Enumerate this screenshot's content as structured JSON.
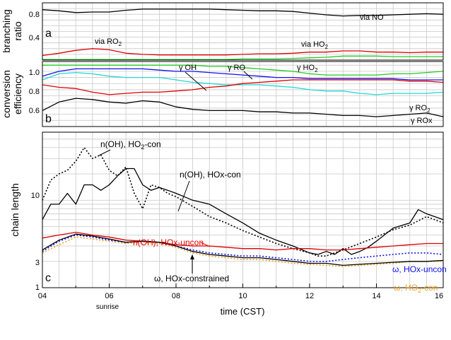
{
  "x_axis": {
    "label": "time (CST)",
    "ticks": [
      "04",
      "06",
      "08",
      "10",
      "12",
      "14",
      "16"
    ],
    "annotation": "sunrise",
    "range": [
      4,
      16
    ]
  },
  "panels": {
    "a": {
      "letter": "a",
      "ylabel_line1": "branching",
      "ylabel_line2": "ratio",
      "ticks": [
        "0.8",
        "0.4"
      ],
      "labels": {
        "via_no": "via NO",
        "via_ro2_main": "via RO",
        "via_ro2_sub": "2",
        "via_ho2_main": "via HO",
        "via_ho2_sub": "2"
      }
    },
    "b": {
      "letter": "b",
      "ylabel_line1": "conversion",
      "ylabel_line2": "efficiency",
      "ticks": [
        "1.0",
        "0.8",
        "0.6"
      ],
      "labels": {
        "g_oh": "γ OH",
        "g_ro": "γ RO",
        "g_ho2_main": "γ HO",
        "g_ho2_sub": "2",
        "g_ro2_main": "γ RO",
        "g_ro2_sub": "2",
        "g_rox": "γ ROx"
      }
    },
    "c": {
      "letter": "c",
      "ylabel": "chain length",
      "ticks": [
        "10",
        "3",
        "1"
      ],
      "labels": {
        "n_oh_ho2_main": "n(OH), HO",
        "n_oh_ho2_sub": "2",
        "n_oh_ho2_tail": "-con",
        "n_oh_hox_con": "n(OH), HOx-con",
        "n_oh_hox_uncon": "n(OH), HOx-uncon",
        "omega_hox_uncon": "ω, HOx-uncon",
        "omega_ho2_main": "ω, HO",
        "omega_ho2_sub": "2",
        "omega_ho2_tail": "-con",
        "omega_hox_constrained": "ω, HOx-constrained"
      }
    }
  },
  "colors": {
    "black": "#000000",
    "red": "#e00000",
    "green": "#22cc22",
    "blue": "#1010ee",
    "cyan": "#22d8d8",
    "orange": "#f0a020"
  },
  "chart_data": [
    {
      "type": "line",
      "panel": "a",
      "ylim": [
        0,
        1.0
      ],
      "series": [
        {
          "name": "via NO",
          "color": "#000000",
          "style": "solid",
          "x": [
            4.0,
            4.5,
            5.0,
            5.5,
            6.0,
            6.5,
            7.0,
            7.5,
            8.0,
            8.5,
            9.0,
            9.5,
            10.0,
            10.5,
            11.0,
            11.5,
            12.0,
            12.5,
            13.0,
            13.5,
            14.0,
            14.5,
            15.0,
            15.5,
            16.0
          ],
          "y": [
            0.88,
            0.86,
            0.83,
            0.84,
            0.84,
            0.87,
            0.89,
            0.89,
            0.89,
            0.89,
            0.89,
            0.88,
            0.87,
            0.86,
            0.86,
            0.85,
            0.82,
            0.79,
            0.77,
            0.78,
            0.78,
            0.79,
            0.8,
            0.81,
            0.8
          ]
        },
        {
          "name": "via RO2",
          "color": "#e00000",
          "style": "solid",
          "x": [
            4.0,
            4.5,
            5.0,
            5.5,
            6.0,
            6.5,
            7.0,
            7.5,
            8.0,
            8.5,
            9.0,
            9.5,
            10.0,
            10.5,
            11.0,
            11.5,
            12.0,
            12.5,
            13.0,
            13.5,
            14.0,
            14.5,
            15.0,
            15.5,
            16.0
          ],
          "y": [
            0.08,
            0.12,
            0.17,
            0.2,
            0.18,
            0.12,
            0.1,
            0.09,
            0.09,
            0.09,
            0.09,
            0.09,
            0.1,
            0.11,
            0.11,
            0.12,
            0.14,
            0.14,
            0.16,
            0.16,
            0.14,
            0.14,
            0.13,
            0.14,
            0.14
          ]
        },
        {
          "name": "via HO2",
          "color": "#22cc22",
          "style": "solid",
          "x": [
            4.0,
            4.5,
            5.0,
            5.5,
            6.0,
            6.5,
            7.0,
            7.5,
            8.0,
            8.5,
            9.0,
            9.5,
            10.0,
            10.5,
            11.0,
            11.5,
            12.0,
            12.5,
            13.0,
            13.5,
            14.0,
            14.5,
            15.0,
            15.5,
            16.0
          ],
          "y": [
            0.01,
            0.01,
            0.01,
            0.01,
            0.01,
            0.01,
            0.01,
            0.01,
            0.01,
            0.01,
            0.01,
            0.01,
            0.02,
            0.02,
            0.02,
            0.03,
            0.04,
            0.05,
            0.07,
            0.07,
            0.07,
            0.06,
            0.06,
            0.06,
            0.06
          ]
        }
      ]
    },
    {
      "type": "line",
      "panel": "b",
      "ylim": [
        0.5,
        1.03
      ],
      "series": [
        {
          "name": "γ HO2",
          "color": "#22cc22",
          "style": "solid",
          "x": [
            4.0,
            4.5,
            5.0,
            5.5,
            6.0,
            6.5,
            7.0,
            7.5,
            8.0,
            8.5,
            9.0,
            9.5,
            10.0,
            10.5,
            11.0,
            11.5,
            12.0,
            12.5,
            13.0,
            13.5,
            14.0,
            14.5,
            15.0,
            15.5,
            16.0
          ],
          "y": [
            1.0,
            1.0,
            1.0,
            1.0,
            1.0,
            1.0,
            1.0,
            1.0,
            1.0,
            1.0,
            0.99,
            0.99,
            0.98,
            0.97,
            0.96,
            0.95,
            0.93,
            0.92,
            0.92,
            0.92,
            0.92,
            0.93,
            0.93,
            0.94,
            0.95
          ]
        },
        {
          "name": "γ RO",
          "color": "#1010ee",
          "style": "solid",
          "x": [
            4.0,
            4.5,
            5.0,
            5.5,
            6.0,
            6.5,
            7.0,
            7.5,
            8.0,
            8.5,
            9.0,
            9.5,
            10.0,
            10.5,
            11.0,
            11.5,
            12.0,
            12.5,
            13.0,
            13.5,
            14.0,
            14.5,
            15.0,
            15.5,
            16.0
          ],
          "y": [
            0.91,
            0.95,
            0.97,
            0.97,
            0.97,
            0.97,
            0.97,
            0.96,
            0.95,
            0.95,
            0.94,
            0.93,
            0.92,
            0.91,
            0.9,
            0.9,
            0.89,
            0.89,
            0.89,
            0.89,
            0.89,
            0.89,
            0.88,
            0.88,
            0.88
          ]
        },
        {
          "name": "γ OH",
          "color": "#22d8d8",
          "style": "solid",
          "x": [
            4.0,
            4.5,
            5.0,
            5.5,
            6.0,
            6.5,
            7.0,
            7.5,
            8.0,
            8.5,
            9.0,
            9.5,
            10.0,
            10.5,
            11.0,
            11.5,
            12.0,
            12.5,
            13.0,
            13.5,
            14.0,
            14.5,
            15.0,
            15.5,
            16.0
          ],
          "y": [
            0.88,
            0.93,
            0.94,
            0.93,
            0.91,
            0.9,
            0.9,
            0.9,
            0.88,
            0.86,
            0.85,
            0.84,
            0.84,
            0.84,
            0.83,
            0.82,
            0.8,
            0.79,
            0.79,
            0.77,
            0.76,
            0.77,
            0.77,
            0.77,
            0.78
          ]
        },
        {
          "name": "γ RO2",
          "color": "#e00000",
          "style": "solid",
          "x": [
            4.0,
            4.5,
            5.0,
            5.5,
            6.0,
            6.5,
            7.0,
            7.5,
            8.0,
            8.5,
            9.0,
            9.5,
            10.0,
            10.5,
            11.0,
            11.5,
            12.0,
            12.5,
            13.0,
            13.5,
            14.0,
            14.5,
            15.0,
            15.5,
            16.0
          ],
          "y": [
            0.84,
            0.82,
            0.81,
            0.78,
            0.76,
            0.77,
            0.78,
            0.78,
            0.79,
            0.8,
            0.82,
            0.83,
            0.85,
            0.86,
            0.87,
            0.88,
            0.88,
            0.88,
            0.88,
            0.88,
            0.88,
            0.88,
            0.87,
            0.87,
            0.86
          ]
        },
        {
          "name": "γ ROx",
          "color": "#000000",
          "style": "solid",
          "x": [
            4.0,
            4.5,
            5.0,
            5.5,
            6.0,
            6.5,
            7.0,
            7.5,
            8.0,
            8.5,
            9.0,
            9.5,
            10.0,
            10.5,
            11.0,
            11.5,
            12.0,
            12.5,
            13.0,
            13.5,
            14.0,
            14.5,
            15.0,
            15.5,
            16.0
          ],
          "y": [
            0.63,
            0.7,
            0.73,
            0.72,
            0.7,
            0.69,
            0.71,
            0.7,
            0.66,
            0.64,
            0.63,
            0.63,
            0.63,
            0.62,
            0.62,
            0.61,
            0.61,
            0.6,
            0.59,
            0.59,
            0.58,
            0.59,
            0.6,
            0.61,
            0.58
          ]
        }
      ]
    },
    {
      "type": "line",
      "panel": "c",
      "yscale": "log",
      "ylim": [
        1,
        60
      ],
      "series": [
        {
          "name": "n(OH), HO2-con",
          "color": "#000000",
          "style": "dotted",
          "x": [
            4.0,
            4.25,
            4.5,
            4.75,
            5.0,
            5.25,
            5.5,
            5.75,
            6.0,
            6.25,
            6.5,
            6.75,
            7.0,
            7.25,
            7.5,
            7.75,
            8.0,
            8.5,
            9.0,
            9.5,
            10.0,
            10.5,
            11.0,
            11.5,
            12.0,
            12.25,
            12.5,
            12.75,
            13.0,
            13.5,
            14.0,
            14.5,
            15.0,
            15.5,
            16.0
          ],
          "y": [
            10,
            17,
            20,
            22,
            28,
            40,
            30,
            33,
            22,
            19,
            24,
            12,
            8,
            15,
            14,
            12,
            11,
            8.5,
            6.5,
            5.5,
            4.5,
            3.8,
            3.2,
            2.8,
            2.5,
            2.3,
            2.3,
            2.5,
            2.7,
            3.2,
            3.8,
            4.6,
            5.2,
            6.5,
            5.5
          ]
        },
        {
          "name": "n(OH), HOx-con",
          "color": "#000000",
          "style": "solid",
          "x": [
            4.0,
            4.25,
            4.5,
            4.75,
            5.0,
            5.25,
            5.5,
            5.75,
            6.0,
            6.25,
            6.5,
            6.75,
            7.0,
            7.25,
            7.5,
            7.75,
            8.0,
            8.5,
            9.0,
            9.5,
            10.0,
            10.5,
            11.0,
            11.5,
            12.0,
            12.25,
            12.5,
            12.75,
            13.0,
            13.25,
            13.5,
            13.75,
            14.0,
            14.5,
            15.0,
            15.25,
            15.5,
            16.0
          ],
          "y": [
            6,
            9,
            9,
            12,
            9,
            15,
            15,
            13,
            15,
            19,
            23,
            23,
            15,
            13,
            14,
            13,
            12,
            10,
            9,
            7,
            5.5,
            4.2,
            3.5,
            3.0,
            2.5,
            2.4,
            2.6,
            2.4,
            2.8,
            2.4,
            2.6,
            2.9,
            3.4,
            4.8,
            5.5,
            7.8,
            7.0,
            6.0
          ]
        },
        {
          "name": "n(OH), HOx-uncon",
          "color": "#e00000",
          "style": "solid",
          "x": [
            4.0,
            4.5,
            5.0,
            5.5,
            6.0,
            6.5,
            7.0,
            7.5,
            8.0,
            8.5,
            9.0,
            9.5,
            10.0,
            10.5,
            11.0,
            11.5,
            12.0,
            12.5,
            13.0,
            13.5,
            14.0,
            14.5,
            15.0,
            15.5,
            16.0
          ],
          "y": [
            3.7,
            4.0,
            4.3,
            4.0,
            3.8,
            3.5,
            3.4,
            3.3,
            3.1,
            3.0,
            3.0,
            2.9,
            2.8,
            2.8,
            2.7,
            2.8,
            2.8,
            2.7,
            2.7,
            2.8,
            2.9,
            3.0,
            3.1,
            3.2,
            3.2
          ]
        },
        {
          "name": "ω, HOx-uncon",
          "color": "#1010ee",
          "style": "dotted",
          "x": [
            4.0,
            4.5,
            5.0,
            5.5,
            6.0,
            6.5,
            7.0,
            7.5,
            8.0,
            8.5,
            9.0,
            9.5,
            10.0,
            10.5,
            11.0,
            11.5,
            12.0,
            12.5,
            13.0,
            13.5,
            14.0,
            14.5,
            15.0,
            15.5,
            16.0
          ],
          "y": [
            2.6,
            3.4,
            4.0,
            3.8,
            3.5,
            3.3,
            3.4,
            3.3,
            3.0,
            2.7,
            2.5,
            2.4,
            2.3,
            2.3,
            2.2,
            2.1,
            2.0,
            2.0,
            2.1,
            2.2,
            2.3,
            2.4,
            2.5,
            2.5,
            2.4
          ]
        },
        {
          "name": "ω, HO2-con",
          "color": "#f0a020",
          "style": "dotted",
          "x": [
            4.0,
            4.5,
            5.0,
            5.5,
            6.0,
            6.5,
            7.0,
            7.5,
            8.0,
            8.5,
            9.0,
            9.5,
            10.0,
            10.5,
            11.0,
            11.5,
            12.0,
            12.5,
            13.0,
            13.5,
            14.0,
            14.5,
            15.0,
            15.5,
            16.0
          ],
          "y": [
            2.5,
            3.1,
            3.8,
            3.6,
            3.4,
            3.2,
            3.3,
            3.2,
            2.9,
            2.5,
            2.3,
            2.2,
            2.1,
            2.1,
            2.0,
            1.9,
            1.85,
            1.8,
            1.75,
            1.8,
            1.85,
            1.9,
            2.0,
            2.0,
            2.0
          ]
        },
        {
          "name": "ω, HOx-constrained",
          "color": "#000000",
          "style": "solid",
          "x": [
            4.0,
            4.5,
            5.0,
            5.5,
            6.0,
            6.5,
            7.0,
            7.5,
            8.0,
            8.5,
            9.0,
            9.5,
            10.0,
            10.5,
            11.0,
            11.5,
            12.0,
            12.5,
            13.0,
            13.5,
            14.0,
            14.5,
            15.0,
            15.5,
            16.0
          ],
          "y": [
            2.7,
            3.5,
            4.1,
            3.9,
            3.6,
            3.3,
            3.4,
            3.3,
            3.0,
            2.6,
            2.4,
            2.3,
            2.2,
            2.2,
            2.1,
            2.0,
            1.9,
            1.9,
            1.8,
            1.85,
            1.9,
            1.95,
            2.0,
            2.0,
            2.05
          ]
        }
      ]
    }
  ]
}
